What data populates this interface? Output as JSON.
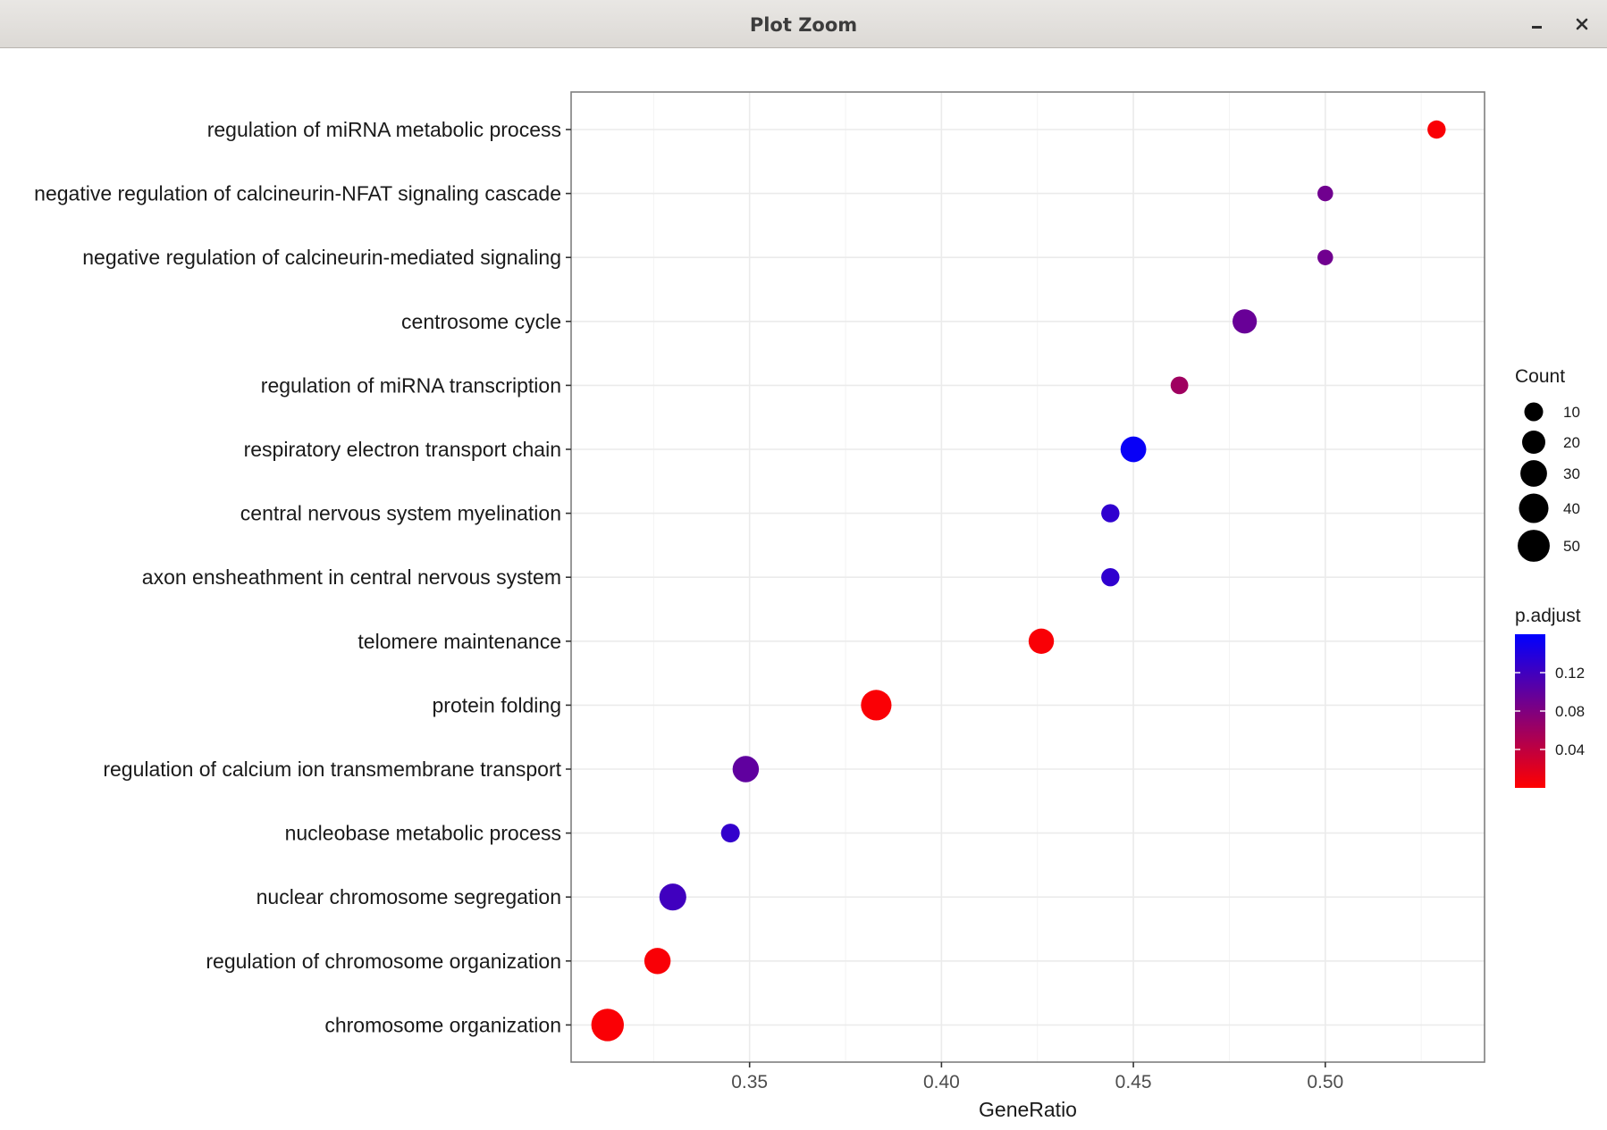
{
  "window": {
    "title": "Plot Zoom",
    "controls": [
      {
        "name": "minimize",
        "icon": "minimize-icon"
      },
      {
        "name": "close",
        "icon": "close-icon"
      }
    ]
  },
  "chart_data": {
    "type": "scatter",
    "xlabel": "GeneRatio",
    "ylabel": "",
    "xlim": [
      0.3035,
      0.5415
    ],
    "x_ticks": [
      "0.35",
      "0.40",
      "0.45",
      "0.50"
    ],
    "x_tick_values": [
      0.35,
      0.4,
      0.45,
      0.5
    ],
    "grid": true,
    "legend_position": "right",
    "categories": [
      "regulation of miRNA metabolic process",
      "negative regulation of calcineurin-NFAT signaling cascade",
      "negative regulation of calcineurin-mediated signaling",
      "centrosome cycle",
      "regulation of miRNA transcription",
      "respiratory electron transport chain",
      "central nervous system myelination",
      "axon ensheathment in central nervous system",
      "telomere maintenance",
      "protein folding",
      "regulation of calcium ion transmembrane transport",
      "nucleobase metabolic process",
      "nuclear chromosome segregation",
      "regulation of chromosome organization",
      "chromosome organization"
    ],
    "points": [
      {
        "term": "regulation of miRNA metabolic process",
        "gene_ratio": 0.529,
        "count": 9,
        "p_adjust": 0.003
      },
      {
        "term": "negative regulation of calcineurin-NFAT signaling cascade",
        "gene_ratio": 0.5,
        "count": 5,
        "p_adjust": 0.09
      },
      {
        "term": "negative regulation of calcineurin-mediated signaling",
        "gene_ratio": 0.5,
        "count": 5,
        "p_adjust": 0.09
      },
      {
        "term": "centrosome cycle",
        "gene_ratio": 0.479,
        "count": 23,
        "p_adjust": 0.095
      },
      {
        "term": "regulation of miRNA transcription",
        "gene_ratio": 0.462,
        "count": 8,
        "p_adjust": 0.06
      },
      {
        "term": "respiratory electron transport chain",
        "gene_ratio": 0.45,
        "count": 27,
        "p_adjust": 0.155
      },
      {
        "term": "central nervous system myelination",
        "gene_ratio": 0.444,
        "count": 9,
        "p_adjust": 0.13
      },
      {
        "term": "axon ensheathment in central nervous system",
        "gene_ratio": 0.444,
        "count": 9,
        "p_adjust": 0.13
      },
      {
        "term": "telomere maintenance",
        "gene_ratio": 0.426,
        "count": 26,
        "p_adjust": 0.004
      },
      {
        "term": "protein folding",
        "gene_ratio": 0.383,
        "count": 44,
        "p_adjust": 0.003
      },
      {
        "term": "regulation of calcium ion transmembrane transport",
        "gene_ratio": 0.349,
        "count": 29,
        "p_adjust": 0.1
      },
      {
        "term": "nucleobase metabolic process",
        "gene_ratio": 0.345,
        "count": 10,
        "p_adjust": 0.128
      },
      {
        "term": "nuclear chromosome segregation",
        "gene_ratio": 0.33,
        "count": 31,
        "p_adjust": 0.12
      },
      {
        "term": "regulation of chromosome organization",
        "gene_ratio": 0.326,
        "count": 29,
        "p_adjust": 0.004
      },
      {
        "term": "chromosome organization",
        "gene_ratio": 0.313,
        "count": 52,
        "p_adjust": 0.003
      }
    ],
    "legend": {
      "size": {
        "title": "Count",
        "breaks": [
          10,
          20,
          30,
          40,
          50
        ],
        "labels": [
          "10",
          "20",
          "30",
          "40",
          "50"
        ]
      },
      "color": {
        "title": "p.adjust",
        "range": [
          0.0,
          0.16
        ],
        "breaks": [
          0.04,
          0.08,
          0.12
        ],
        "labels": [
          "0.04",
          "0.08",
          "0.12"
        ],
        "low_color": "#ff0000",
        "high_color": "#0000ff"
      }
    },
    "colors": {
      "panel_border": "#7f7f7f",
      "grid_major": "#ebebeb",
      "grid_minor": "#f2f2f2"
    }
  }
}
